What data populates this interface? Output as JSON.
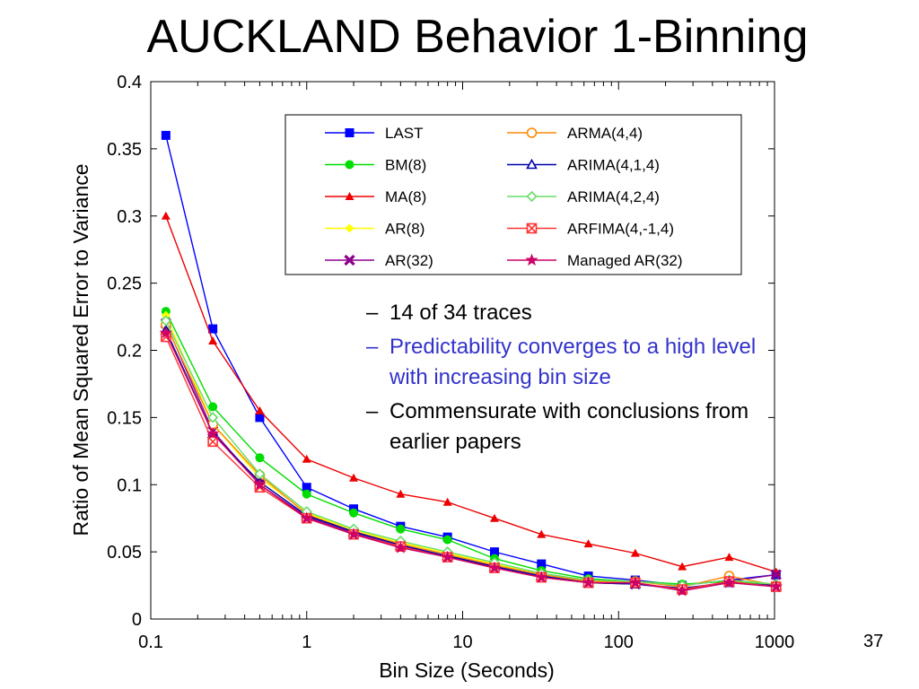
{
  "slide": {
    "title": "AUCKLAND Behavior 1-Binning",
    "page_number": "37"
  },
  "bullets": [
    {
      "dash": "–",
      "text": "14 of 34 traces",
      "color": "#000000"
    },
    {
      "dash": "–",
      "text": "Predictability converges to a high level with increasing bin size",
      "color": "#3333cc"
    },
    {
      "dash": "–",
      "text": "Commensurate with conclusions from earlier papers",
      "color": "#000000"
    }
  ],
  "chart_data": {
    "type": "line",
    "xlabel": "Bin Size (Seconds)",
    "ylabel": "Ratio of Mean Squared Error to Variance",
    "xscale": "log",
    "xlim": [
      0.1,
      1000
    ],
    "ylim": [
      0,
      0.4
    ],
    "xticks": [
      0.1,
      1,
      10,
      100,
      1000
    ],
    "xtick_labels": [
      "0.1",
      "1",
      "10",
      "100",
      "1000"
    ],
    "yticks": [
      0,
      0.05,
      0.1,
      0.15,
      0.2,
      0.25,
      0.3,
      0.35,
      0.4
    ],
    "ytick_labels": [
      "0",
      "0.05",
      "0.1",
      "0.15",
      "0.2",
      "0.25",
      "0.3",
      "0.35",
      "0.4"
    ],
    "grid": false,
    "legend_position": "top-right",
    "x": [
      0.125,
      0.25,
      0.5,
      1,
      2,
      4,
      8,
      16,
      32,
      64,
      128,
      256,
      512,
      1024
    ],
    "series": [
      {
        "name": "LAST",
        "color": "#0000ff",
        "marker": "square",
        "values": [
          0.36,
          0.216,
          0.15,
          0.098,
          0.082,
          0.069,
          0.061,
          0.05,
          0.041,
          0.032,
          0.029,
          0.025,
          0.029,
          0.033
        ]
      },
      {
        "name": "BM(8)",
        "color": "#00dd00",
        "marker": "circle",
        "values": [
          0.229,
          0.158,
          0.12,
          0.093,
          0.079,
          0.067,
          0.059,
          0.045,
          0.036,
          0.03,
          0.028,
          0.026,
          0.028,
          0.025
        ]
      },
      {
        "name": "MA(8)",
        "color": "#ee0000",
        "marker": "triangle",
        "values": [
          0.3,
          0.207,
          0.155,
          0.119,
          0.105,
          0.093,
          0.087,
          0.075,
          0.063,
          0.056,
          0.049,
          0.039,
          0.046,
          0.035
        ]
      },
      {
        "name": "AR(8)",
        "color": "#ffff00",
        "marker": "diamond",
        "values": [
          0.226,
          0.145,
          0.105,
          0.079,
          0.066,
          0.057,
          0.049,
          0.041,
          0.033,
          0.028,
          0.027,
          0.022,
          0.027,
          0.025
        ]
      },
      {
        "name": "AR(32)",
        "color": "#8b008b",
        "marker": "x",
        "values": [
          0.22,
          0.14,
          0.1,
          0.076,
          0.064,
          0.054,
          0.047,
          0.039,
          0.032,
          0.027,
          0.026,
          0.022,
          0.028,
          0.033
        ]
      },
      {
        "name": "ARMA(4,4)",
        "color": "#ff8800",
        "marker": "circle-open",
        "values": [
          0.219,
          0.145,
          0.107,
          0.078,
          0.065,
          0.056,
          0.048,
          0.04,
          0.033,
          0.028,
          0.028,
          0.024,
          0.032,
          0.025
        ]
      },
      {
        "name": "ARIMA(4,1,4)",
        "color": "#0000aa",
        "marker": "triangle-open",
        "values": [
          0.215,
          0.138,
          0.102,
          0.077,
          0.065,
          0.055,
          0.047,
          0.039,
          0.032,
          0.027,
          0.026,
          0.023,
          0.027,
          0.025
        ]
      },
      {
        "name": "ARIMA(4,2,4)",
        "color": "#66dd66",
        "marker": "diamond-open",
        "values": [
          0.222,
          0.15,
          0.108,
          0.08,
          0.067,
          0.058,
          0.05,
          0.042,
          0.034,
          0.029,
          0.028,
          0.025,
          0.029,
          0.026
        ]
      },
      {
        "name": "ARFIMA(4,-1,4)",
        "color": "#ff3333",
        "marker": "x-square",
        "values": [
          0.21,
          0.132,
          0.098,
          0.075,
          0.063,
          0.054,
          0.046,
          0.038,
          0.031,
          0.027,
          0.027,
          0.022,
          0.028,
          0.024
        ]
      },
      {
        "name": "Managed AR(32)",
        "color": "#cc0066",
        "marker": "star",
        "values": [
          0.213,
          0.138,
          0.1,
          0.075,
          0.063,
          0.053,
          0.046,
          0.038,
          0.031,
          0.027,
          0.027,
          0.021,
          0.027,
          0.024
        ]
      }
    ]
  }
}
